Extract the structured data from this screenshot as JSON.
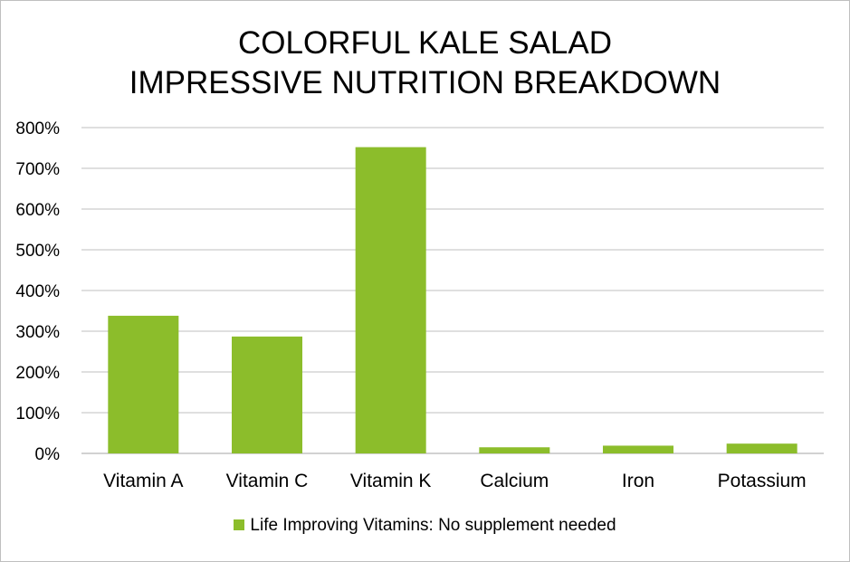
{
  "chart_data": {
    "type": "bar",
    "title_lines": [
      "COLORFUL KALE SALAD",
      "IMPRESSIVE NUTRITION BREAKDOWN"
    ],
    "categories": [
      "Vitamin A",
      "Vitamin C",
      "Vitamin K",
      "Calcium",
      "Iron",
      "Potassium"
    ],
    "series": [
      {
        "name": "Life Improving Vitamins: No supplement needed",
        "values": [
          338,
          287,
          752,
          15,
          19,
          24
        ],
        "color": "#8cbd2b"
      }
    ],
    "ylim": [
      0,
      800
    ],
    "yticks": [
      0,
      100,
      200,
      300,
      400,
      500,
      600,
      700,
      800
    ],
    "ytick_labels": [
      "0%",
      "100%",
      "200%",
      "300%",
      "400%",
      "500%",
      "600%",
      "700%",
      "800%"
    ],
    "grid": true,
    "legend": "bottom"
  }
}
